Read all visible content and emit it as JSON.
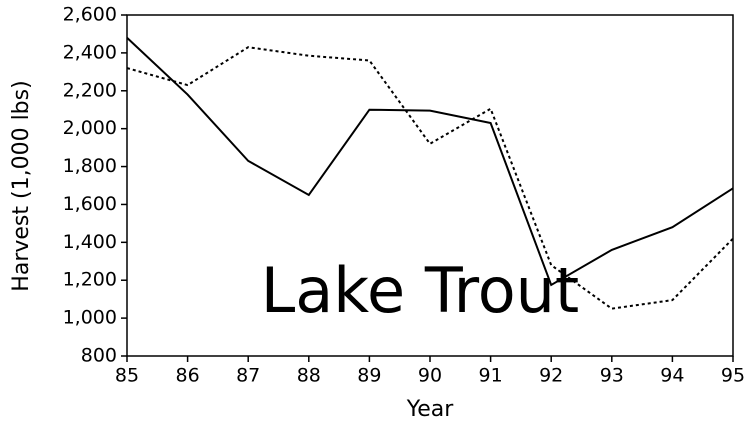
{
  "chart_data": {
    "type": "line",
    "annotation": "Lake Trout",
    "xlabel": "Year",
    "ylabel": "Harvest (1,000 lbs)",
    "x": [
      85,
      86,
      87,
      88,
      89,
      90,
      91,
      92,
      93,
      94,
      95
    ],
    "series": [
      {
        "color": "#000000",
        "line_style": "solid",
        "values": [
          2480,
          2180,
          1830,
          1650,
          2100,
          2095,
          2030,
          1175,
          1360,
          1480,
          1685
        ]
      },
      {
        "color": "#000000",
        "line_style": "dotted",
        "values": [
          2320,
          2230,
          2430,
          2385,
          2360,
          1920,
          2105,
          1280,
          1050,
          1095,
          1420
        ]
      }
    ],
    "xlim": [
      85,
      95
    ],
    "xticks": [
      85,
      86,
      87,
      88,
      89,
      90,
      91,
      92,
      93,
      94,
      95
    ],
    "ylim": [
      800,
      2600
    ],
    "yticks": [
      800,
      {
        "value": 1000,
        "label": "1,000"
      },
      {
        "value": 1200,
        "label": "1,200"
      },
      {
        "value": 1400,
        "label": "1,400"
      },
      {
        "value": 1600,
        "label": "1,600"
      },
      {
        "value": 1800,
        "label": "1,800"
      },
      {
        "value": 2000,
        "label": "2,000"
      },
      {
        "value": 2200,
        "label": "2,200"
      },
      {
        "value": 2400,
        "label": "2,400"
      },
      {
        "value": 2600,
        "label": "2,600"
      }
    ],
    "grid": false
  }
}
